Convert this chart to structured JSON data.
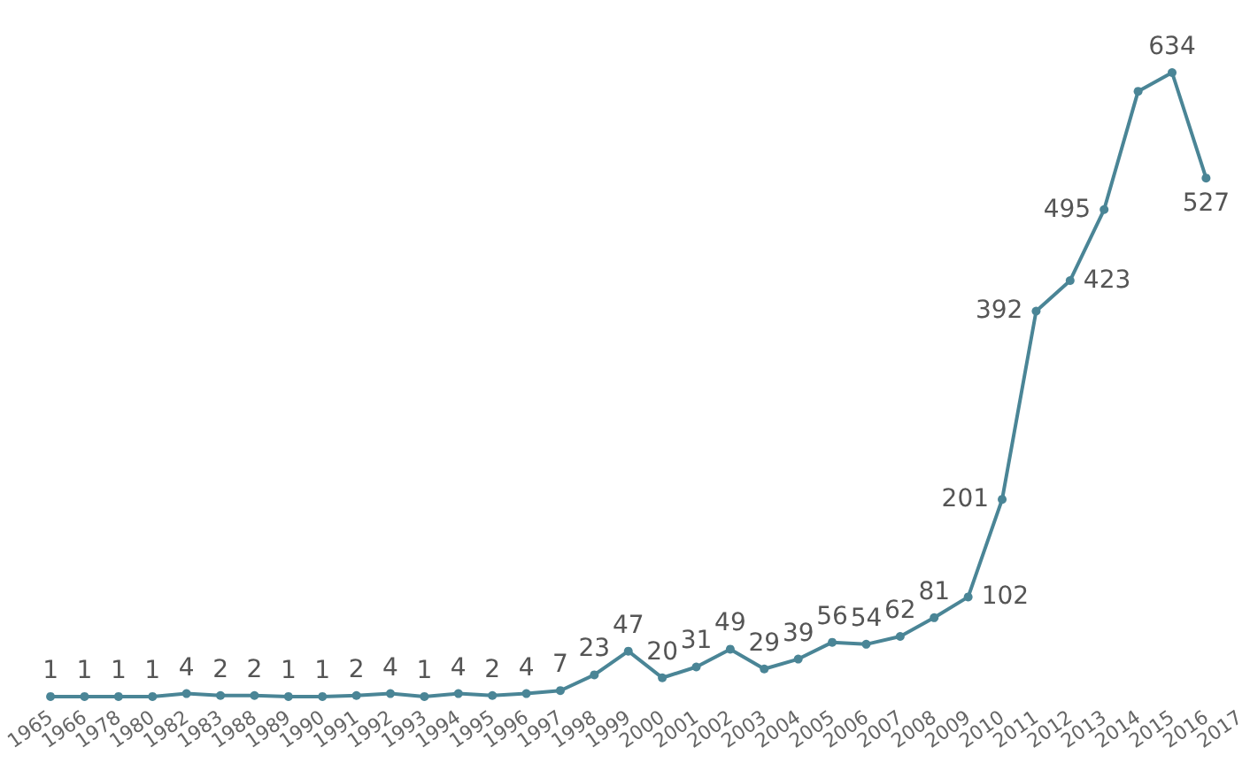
{
  "chart_data": {
    "type": "line",
    "categories": [
      "1965",
      "1966",
      "1978",
      "1980",
      "1982",
      "1983",
      "1988",
      "1989",
      "1990",
      "1991",
      "1992",
      "1993",
      "1994",
      "1995",
      "1996",
      "1997",
      "1998",
      "1999",
      "2000",
      "2001",
      "2002",
      "2003",
      "2004",
      "2005",
      "2006",
      "2007",
      "2008",
      "2009",
      "2010",
      "2011",
      "2012",
      "2013",
      "2014",
      "2015",
      "2016",
      "2017"
    ],
    "series": [
      {
        "color": "#4a8596",
        "values": [
          1,
          1,
          1,
          1,
          4,
          2,
          2,
          1,
          1,
          2,
          4,
          1,
          4,
          2,
          4,
          7,
          23,
          47,
          20,
          31,
          49,
          29,
          39,
          56,
          54,
          62,
          81,
          102,
          201,
          392,
          423,
          495,
          615,
          634,
          527,
          null
        ],
        "value_labels": [
          "1",
          "1",
          "1",
          "1",
          "4",
          "2",
          "2",
          "1",
          "1",
          "2",
          "4",
          "1",
          "4",
          "2",
          "4",
          "7",
          "23",
          "47",
          "20",
          "31",
          "49",
          "29",
          "39",
          "56",
          "54",
          "62",
          "81",
          "102",
          "201",
          "392",
          "423",
          "495",
          null,
          "634",
          "527",
          null
        ]
      }
    ],
    "marker": "circle",
    "grid": false
  }
}
